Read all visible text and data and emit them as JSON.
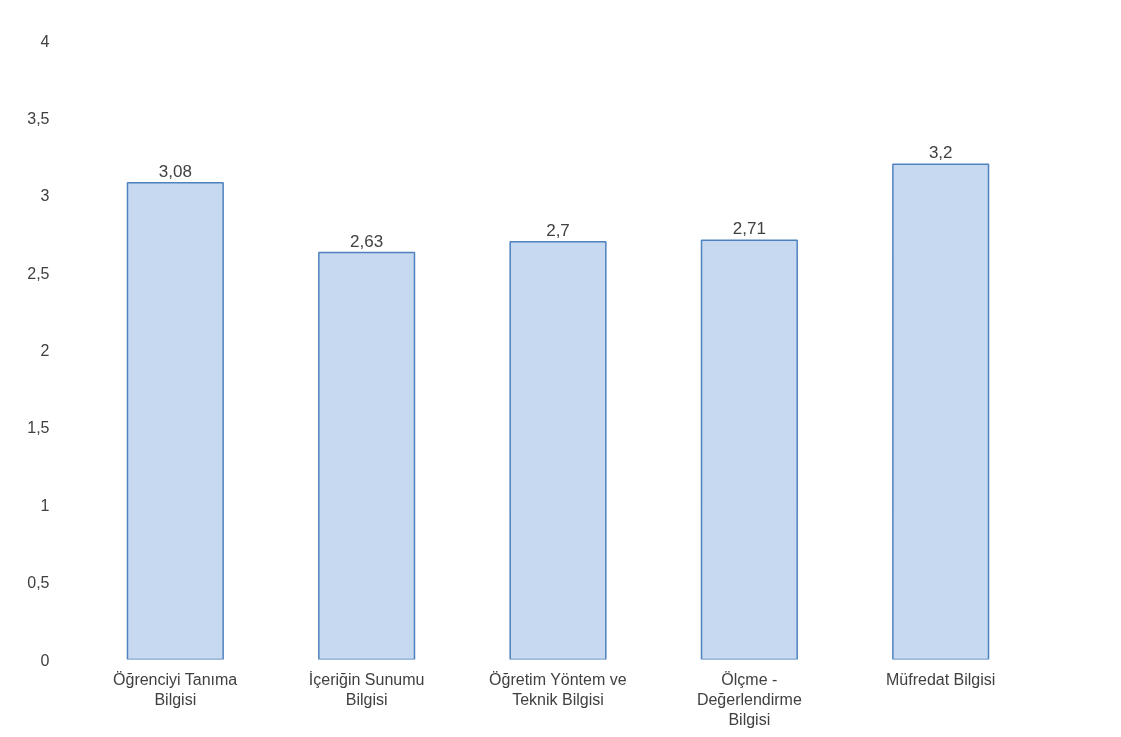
{
  "chart_data": {
    "type": "bar",
    "categories": [
      "Öğrenciyi Tanıma Bilgisi",
      "İçeriğin Sunumu Bilgisi",
      "Öğretim Yöntem ve Teknik Bilgisi",
      "Ölçme - Değerlendirme Bilgisi",
      "Müfredat Bilgisi"
    ],
    "values": [
      3.08,
      2.63,
      2.7,
      2.71,
      3.2
    ],
    "value_labels": [
      "3,08",
      "2,63",
      "2,7",
      "2,71",
      "3,2"
    ],
    "color": "#c6d9f1",
    "ylim": [
      0,
      4
    ],
    "yticks": [
      0,
      {
        "value": 0.5,
        "label": "0,5"
      },
      1,
      {
        "value": 1.5,
        "label": "1,5"
      },
      2,
      {
        "value": 2.5,
        "label": "2,5"
      },
      3,
      {
        "value": 3.5,
        "label": "3,5"
      },
      4
    ],
    "grid": false
  }
}
